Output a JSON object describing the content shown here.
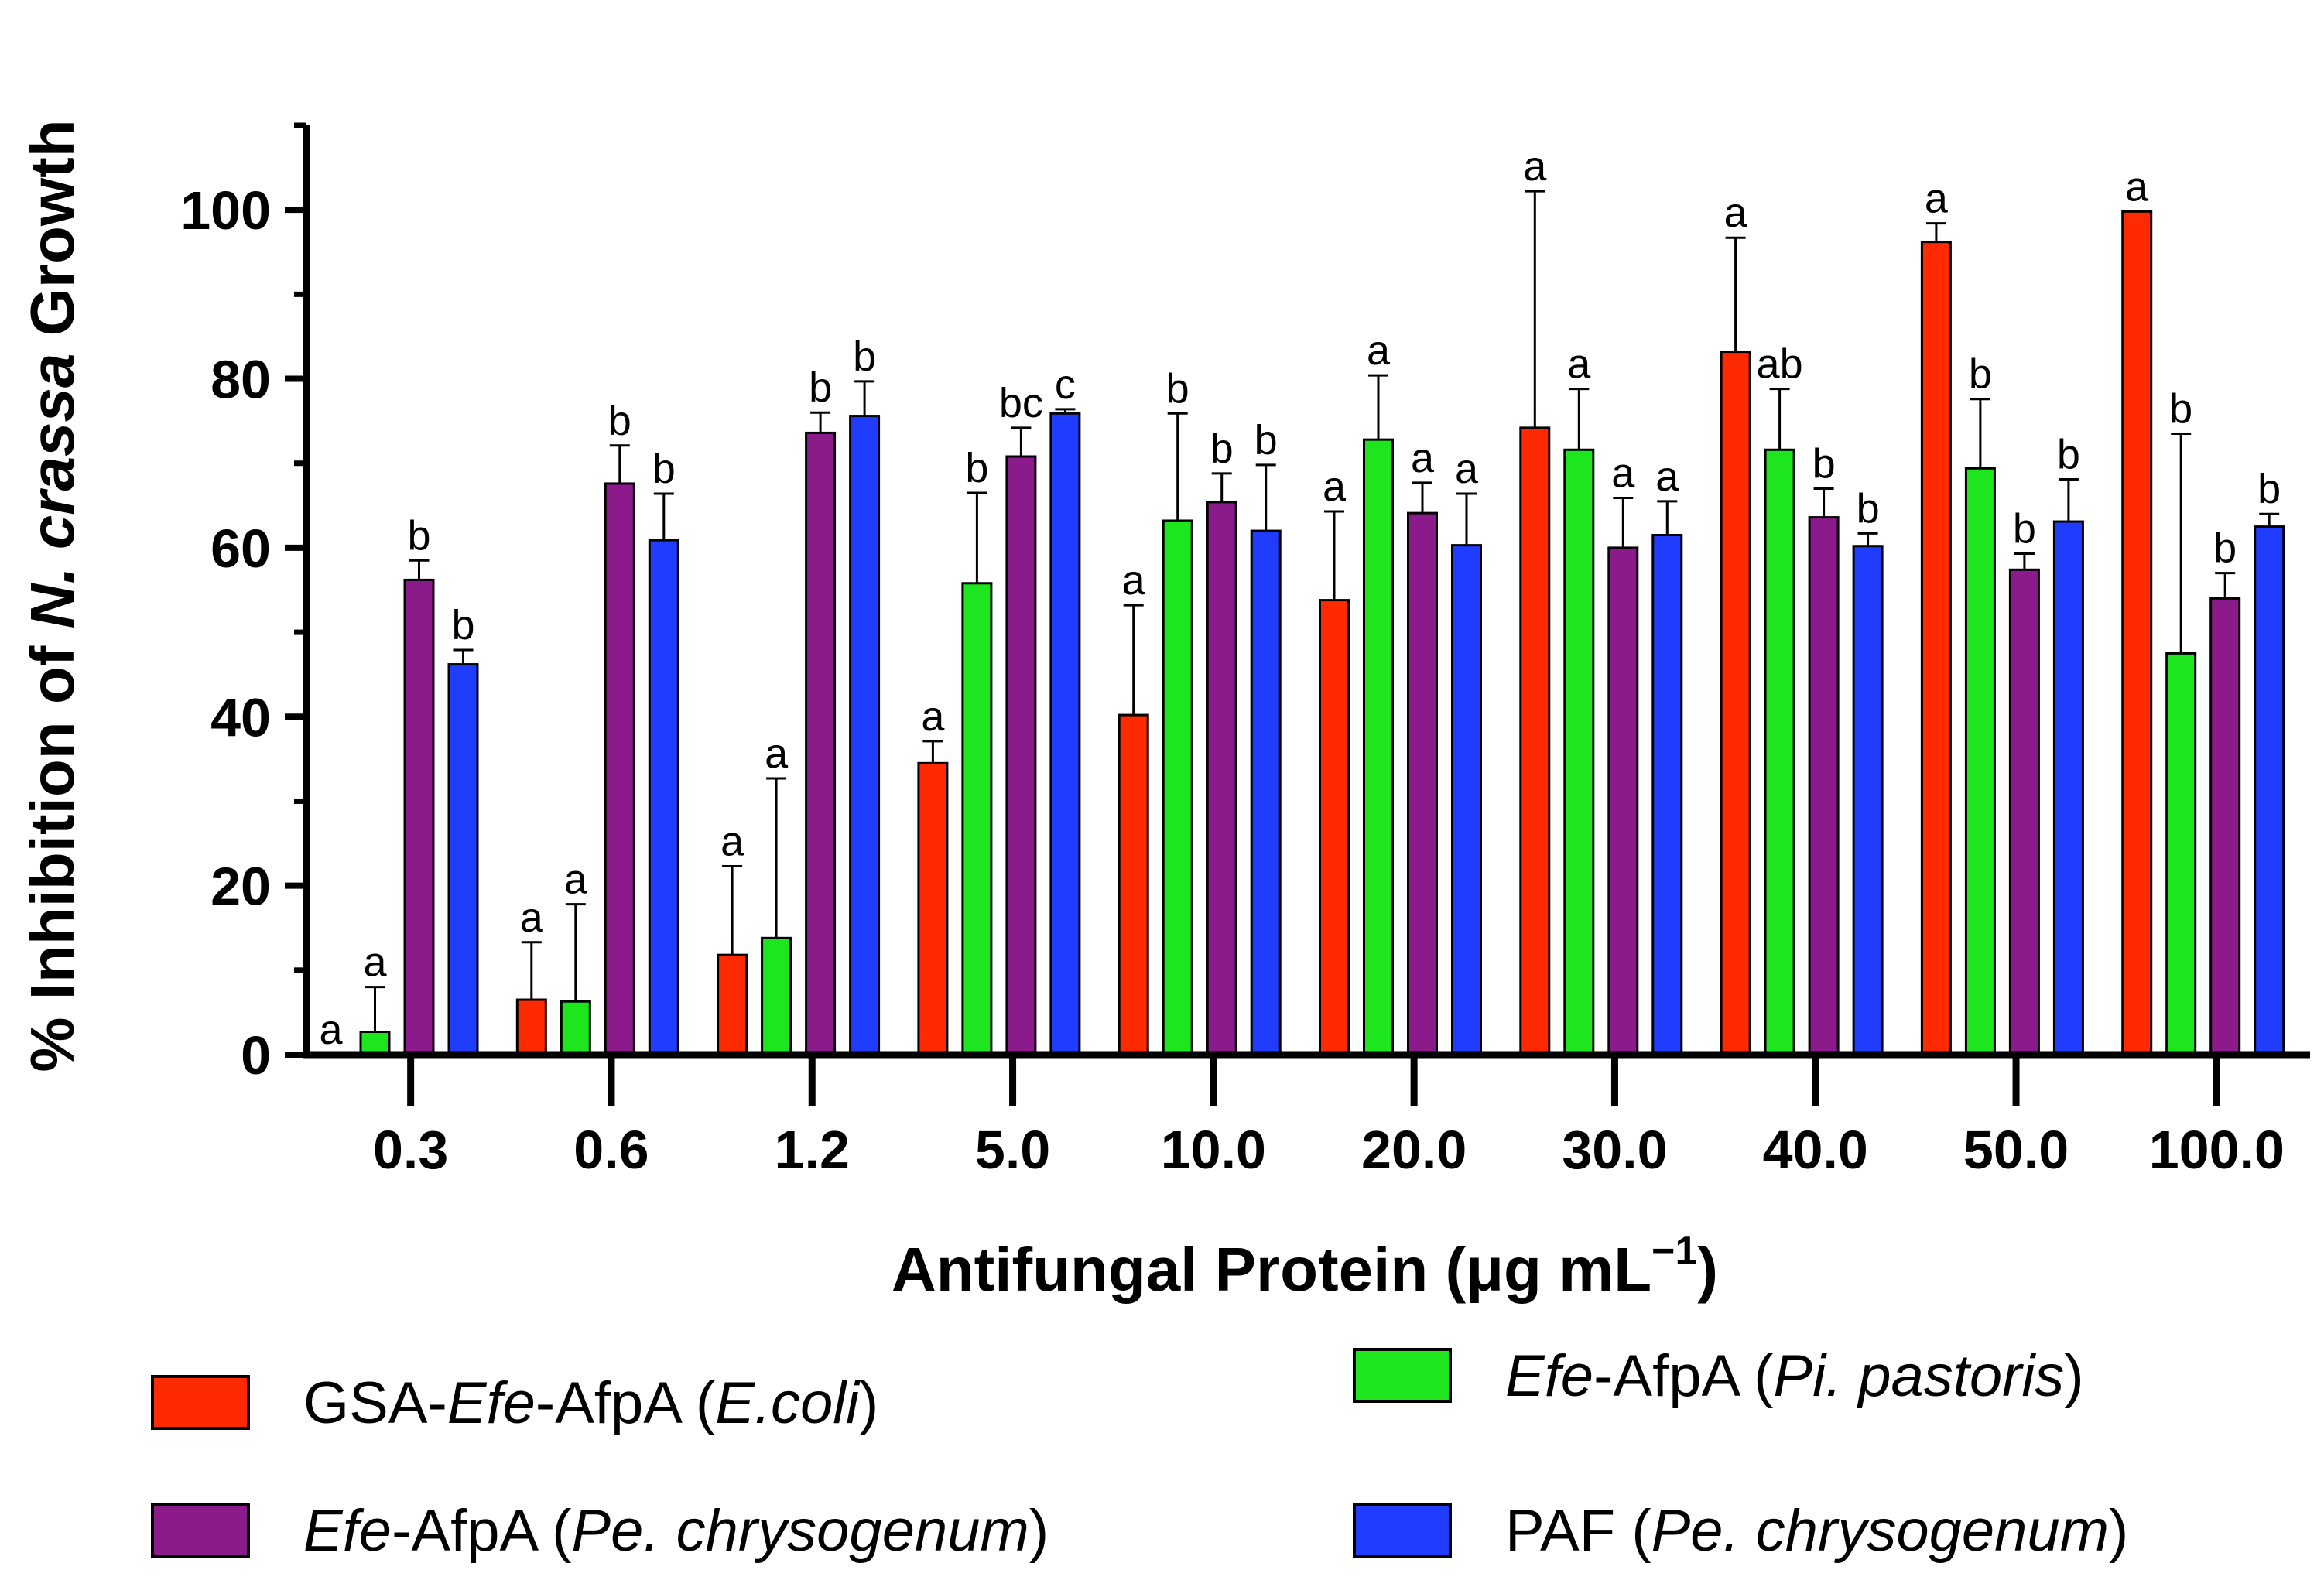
{
  "chart_data": {
    "type": "bar",
    "categories": [
      "0.3",
      "0.6",
      "1.2",
      "5.0",
      "10.0",
      "20.0",
      "30.0",
      "40.0",
      "50.0",
      "100.0"
    ],
    "ylim": [
      0,
      110
    ],
    "yticks": [
      "0",
      "20",
      "40",
      "60",
      "80",
      "100"
    ],
    "ylabel": {
      "prefix": "% Inhibition of ",
      "italic": "N. crassa",
      "suffix": " Growth"
    },
    "xlabel": {
      "text": "Antifungal Protein (μg mL",
      "superscript": "−1",
      "close": ")"
    },
    "series": [
      {
        "name": "GSA-Efe-AfpA (E.coli)",
        "color": "#ff2a00",
        "legend_parts": [
          {
            "t": "GSA-",
            "i": false
          },
          {
            "t": "Efe",
            "i": true
          },
          {
            "t": "-AfpA (",
            "i": false
          },
          {
            "t": "E.coli",
            "i": true
          },
          {
            "t": ")",
            "i": false
          }
        ],
        "values": [
          0,
          6.5,
          11.8,
          34.5,
          40.2,
          53.8,
          74.2,
          83.2,
          96.2,
          99.8
        ],
        "errors": [
          0,
          6.8,
          10.5,
          2.6,
          13.0,
          10.5,
          28.0,
          13.5,
          2.2,
          0
        ],
        "letters": [
          "a",
          "a",
          "a",
          "a",
          "a",
          "a",
          "a",
          "a",
          "a",
          "a"
        ]
      },
      {
        "name": "Efe-AfpA (Pi. pastoris)",
        "color": "#1ee61e",
        "legend_parts": [
          {
            "t": "Efe",
            "i": true
          },
          {
            "t": "-AfpA (",
            "i": false
          },
          {
            "t": "Pi. pastoris",
            "i": true
          },
          {
            "t": ")",
            "i": false
          }
        ],
        "values": [
          2.7,
          6.3,
          13.8,
          55.8,
          63.2,
          72.8,
          71.6,
          71.6,
          69.4,
          47.5
        ],
        "errors": [
          5.3,
          11.5,
          18.9,
          10.7,
          12.7,
          7.6,
          7.2,
          7.2,
          8.2,
          26.0
        ],
        "letters": [
          "a",
          "a",
          "a",
          "b",
          "b",
          "a",
          "a",
          "ab",
          "b",
          "b"
        ]
      },
      {
        "name": "Efe-AfpA (Pe. chrysogenum)",
        "color": "#8b1a8b",
        "legend_parts": [
          {
            "t": "Efe",
            "i": true
          },
          {
            "t": "-AfpA (",
            "i": false
          },
          {
            "t": "Pe. chrysogenum",
            "i": true
          },
          {
            "t": ")",
            "i": false
          }
        ],
        "values": [
          56.2,
          67.6,
          73.6,
          70.8,
          65.4,
          64.1,
          60.0,
          63.6,
          57.4,
          54.0
        ],
        "errors": [
          2.3,
          4.5,
          2.4,
          3.4,
          3.4,
          3.6,
          5.9,
          3.4,
          1.9,
          3.0
        ],
        "letters": [
          "b",
          "b",
          "b",
          "bc",
          "b",
          "a",
          "a",
          "b",
          "b",
          "b"
        ]
      },
      {
        "name": "PAF (Pe. chrysogenum)",
        "color": "#1f3cff",
        "legend_parts": [
          {
            "t": "PAF (",
            "i": false
          },
          {
            "t": "Pe. chrysogenum",
            "i": true
          },
          {
            "t": ")",
            "i": false
          }
        ],
        "values": [
          46.2,
          60.9,
          75.6,
          75.9,
          62.0,
          60.3,
          61.5,
          60.2,
          63.1,
          62.5
        ],
        "errors": [
          1.7,
          5.5,
          4.1,
          0.5,
          7.8,
          6.1,
          4.0,
          1.5,
          5.0,
          1.5
        ],
        "letters": [
          "b",
          "b",
          "b",
          "c",
          "b",
          "a",
          "a",
          "b",
          "b",
          "b"
        ]
      }
    ],
    "legend_position": "bottom"
  }
}
